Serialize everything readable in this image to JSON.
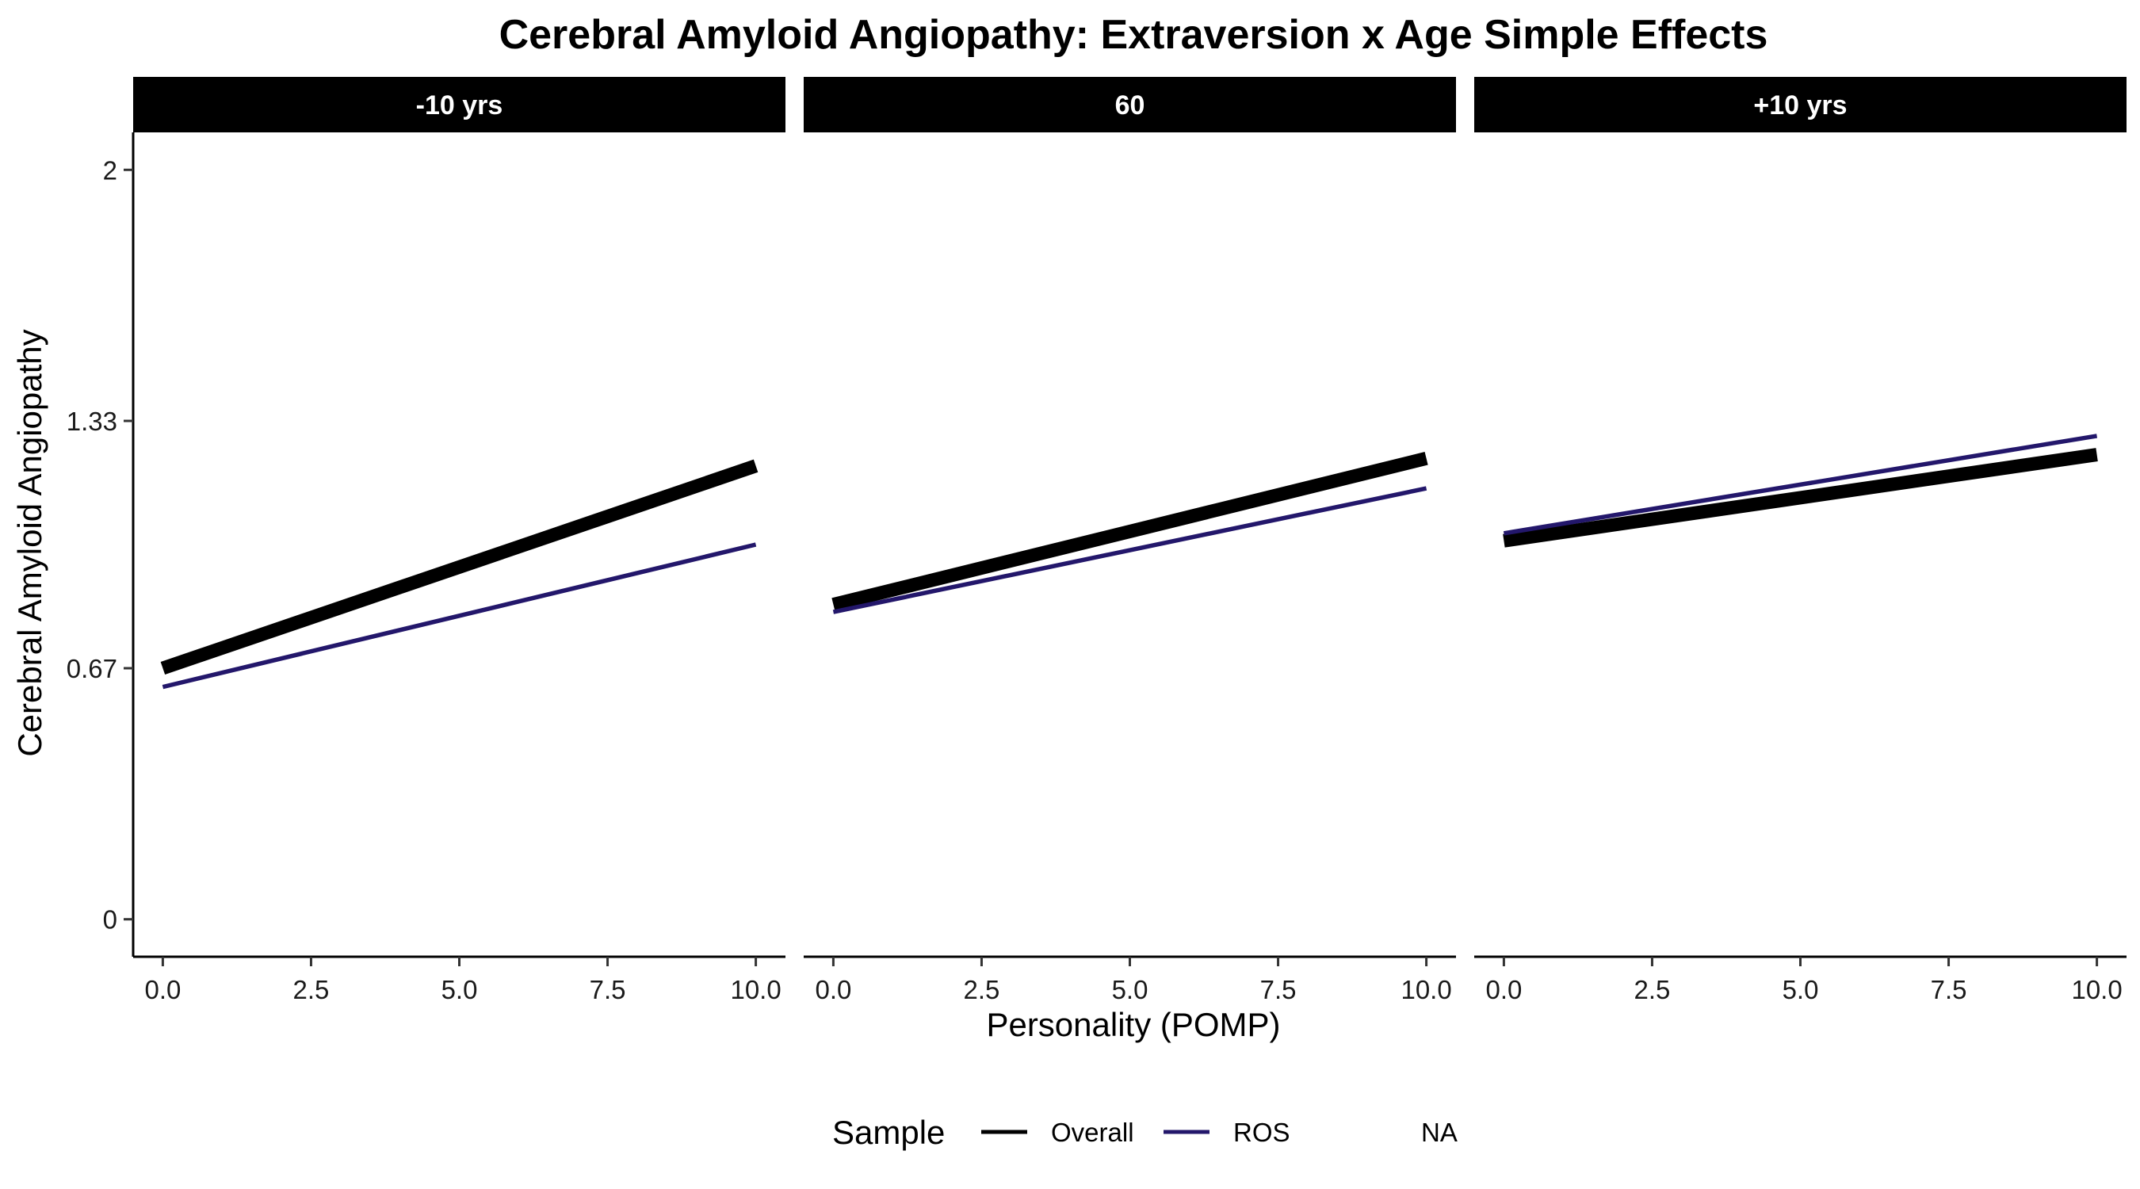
{
  "chart_data": {
    "type": "line",
    "title": "Cerebral Amyloid Angiopathy: Extraversion x Age Simple Effects",
    "xlabel": "Personality (POMP)",
    "ylabel": "Cerebral Amyloid Angiopathy",
    "xlim": [
      -0.5,
      10.5
    ],
    "ylim": [
      -0.1,
      2.1
    ],
    "x_ticks": [
      0,
      2.5,
      5,
      7.5,
      10
    ],
    "x_tick_labels": [
      "0.0",
      "2.5",
      "5.0",
      "7.5",
      "10.0"
    ],
    "y_ticks": [
      0,
      0.67,
      1.33,
      2
    ],
    "y_tick_labels": [
      "0",
      "0.67",
      "1.33",
      "2"
    ],
    "grid": false,
    "legend": {
      "title": "Sample",
      "position": "bottom",
      "entries": [
        {
          "label": "Overall",
          "color": "#000000"
        },
        {
          "label": "ROS",
          "color": "#23176b"
        },
        {
          "label": "NA",
          "color": "#ffffff"
        }
      ]
    },
    "panels": [
      {
        "label": "-10 yrs",
        "series": [
          {
            "name": "Overall",
            "color": "#000000",
            "x": [
              0,
              10
            ],
            "y": [
              0.67,
              1.21
            ]
          },
          {
            "name": "ROS",
            "color": "#23176b",
            "x": [
              0,
              10
            ],
            "y": [
              0.62,
              1.0
            ]
          }
        ]
      },
      {
        "label": "60",
        "series": [
          {
            "name": "Overall",
            "color": "#000000",
            "x": [
              0,
              10
            ],
            "y": [
              0.84,
              1.23
            ]
          },
          {
            "name": "ROS",
            "color": "#23176b",
            "x": [
              0,
              10
            ],
            "y": [
              0.82,
              1.15
            ]
          }
        ]
      },
      {
        "label": "+10 yrs",
        "series": [
          {
            "name": "Overall",
            "color": "#000000",
            "x": [
              0,
              10
            ],
            "y": [
              1.01,
              1.24
            ]
          },
          {
            "name": "ROS",
            "color": "#23176b",
            "x": [
              0,
              10
            ],
            "y": [
              1.03,
              1.29
            ]
          }
        ]
      }
    ]
  }
}
